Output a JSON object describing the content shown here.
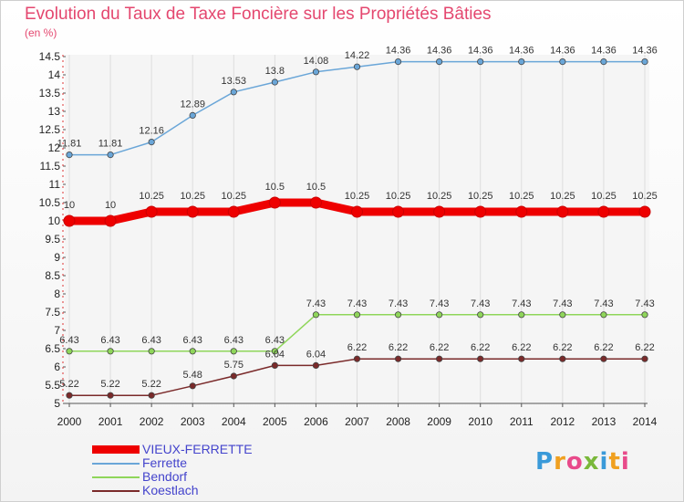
{
  "title": "Evolution du Taux de Taxe Foncière sur les Propriétés Bâties",
  "unit_label": "(en %)",
  "logo": {
    "text": "Proxiti",
    "letter_colors": [
      "#3a9ad9",
      "#f0a020",
      "#e84a8a",
      "#7ab83a",
      "#3a9ad9",
      "#f0a020",
      "#e84a8a"
    ]
  },
  "chart_data": {
    "type": "line",
    "title": "Evolution du Taux de Taxe Foncière sur les Propriétés Bâties",
    "ylabel": "(en %)",
    "xlabel": "",
    "ylim": [
      5,
      14.5
    ],
    "y_ticks": [
      "5",
      "5.5",
      "6",
      "6.5",
      "7",
      "7.5",
      "8",
      "8.5",
      "9",
      "9.5",
      "10",
      "10.5",
      "11",
      "11.5",
      "12",
      "12.5",
      "13",
      "13.5",
      "14",
      "14.5"
    ],
    "x": [
      "2000",
      "2001",
      "2002",
      "2003",
      "2004",
      "2005",
      "2006",
      "2007",
      "2008",
      "2009",
      "2010",
      "2011",
      "2012",
      "2013",
      "2014"
    ],
    "legend_position": "bottom-left",
    "series": [
      {
        "name": "VIEUX-FERRETTE",
        "color": "#ee0000",
        "values": [
          10,
          10,
          10.25,
          10.25,
          10.25,
          10.5,
          10.5,
          10.25,
          10.25,
          10.25,
          10.25,
          10.25,
          10.25,
          10.25,
          10.25
        ],
        "labels": [
          "10",
          "10",
          "10.25",
          "10.25",
          "10.25",
          "10.5",
          "10.5",
          "10.25",
          "10.25",
          "10.25",
          "10.25",
          "10.25",
          "10.25",
          "10.25",
          "10.25"
        ]
      },
      {
        "name": "Ferrette",
        "color": "#6aa6d8",
        "values": [
          11.81,
          11.81,
          12.16,
          12.89,
          13.53,
          13.8,
          14.08,
          14.22,
          14.36,
          14.36,
          14.36,
          14.36,
          14.36,
          14.36,
          14.36
        ],
        "labels": [
          "11.81",
          "11.81",
          "12.16",
          "12.89",
          "13.53",
          "13.8",
          "14.08",
          "14.22",
          "14.36",
          "14.36",
          "14.36",
          "14.36",
          "14.36",
          "14.36",
          "14.36"
        ]
      },
      {
        "name": "Bendorf",
        "color": "#8fd65a",
        "values": [
          6.43,
          6.43,
          6.43,
          6.43,
          6.43,
          6.43,
          7.43,
          7.43,
          7.43,
          7.43,
          7.43,
          7.43,
          7.43,
          7.43,
          7.43
        ],
        "labels": [
          "6.43",
          "6.43",
          "6.43",
          "6.43",
          "6.43",
          "6.43",
          "7.43",
          "7.43",
          "7.43",
          "7.43",
          "7.43",
          "7.43",
          "7.43",
          "7.43",
          "7.43"
        ]
      },
      {
        "name": "Koestlach",
        "color": "#7a2a2a",
        "values": [
          5.22,
          5.22,
          5.22,
          5.48,
          5.75,
          6.04,
          6.04,
          6.22,
          6.22,
          6.22,
          6.22,
          6.22,
          6.22,
          6.22,
          6.22
        ],
        "labels": [
          "5.22",
          "5.22",
          "5.22",
          "5.48",
          "5.75",
          "6.04",
          "6.04",
          "6.22",
          "6.22",
          "6.22",
          "6.22",
          "6.22",
          "6.22",
          "6.22",
          "6.22"
        ]
      }
    ]
  }
}
